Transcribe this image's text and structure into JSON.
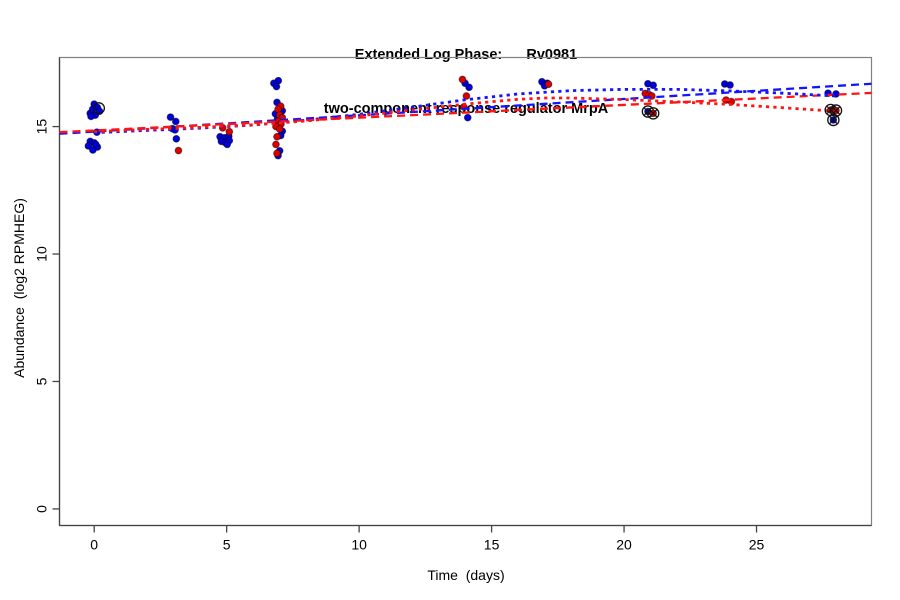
{
  "title": {
    "line1": "Extended Log Phase:      Rv0981",
    "line2": "two-component response regulator MrpA"
  },
  "chart_data": {
    "type": "scatter",
    "xlabel": "Time  (days)",
    "ylabel": "Abundance  (log2 RPMHEG)",
    "xlim": [
      -1.31,
      29.34
    ],
    "ylim": [
      -0.65,
      17.71
    ],
    "xticks": [
      0,
      5,
      10,
      15,
      20,
      25
    ],
    "yticks": [
      0,
      5,
      10,
      15
    ],
    "grid": false,
    "legend": "none",
    "colors": {
      "blue": "#0000D8",
      "red": "#DC0000",
      "dash_blue": "#1414FF",
      "dash_red": "#FF1414",
      "box": "#808080",
      "axis": "#444444",
      "flag": "#111111"
    },
    "series": [
      {
        "name": "blue-sample-points",
        "color": "blue",
        "points": [
          [
            -0.15,
            15.52
          ],
          [
            0.0,
            15.88
          ],
          [
            0.12,
            15.75
          ],
          [
            -0.06,
            15.68
          ],
          [
            0.2,
            15.6
          ],
          [
            0.04,
            15.45
          ],
          [
            -0.12,
            15.4
          ],
          [
            0.1,
            14.78
          ],
          [
            -0.15,
            14.42
          ],
          [
            0.0,
            14.36
          ],
          [
            -0.22,
            14.24
          ],
          [
            0.12,
            14.2
          ],
          [
            -0.05,
            14.08
          ],
          [
            0.06,
            14.3
          ],
          [
            2.88,
            15.37
          ],
          [
            3.08,
            15.2
          ],
          [
            2.95,
            14.92
          ],
          [
            3.05,
            14.87
          ],
          [
            3.1,
            14.52
          ],
          [
            4.75,
            14.6
          ],
          [
            4.92,
            14.56
          ],
          [
            5.08,
            14.62
          ],
          [
            4.8,
            14.42
          ],
          [
            4.95,
            14.37
          ],
          [
            5.1,
            14.45
          ],
          [
            5.02,
            14.3
          ],
          [
            6.95,
            16.8
          ],
          [
            6.78,
            16.7
          ],
          [
            6.88,
            16.57
          ],
          [
            6.9,
            15.95
          ],
          [
            7.1,
            15.62
          ],
          [
            6.84,
            15.5
          ],
          [
            6.92,
            15.3
          ],
          [
            7.1,
            14.82
          ],
          [
            7.04,
            14.65
          ],
          [
            7.0,
            14.05
          ],
          [
            6.94,
            13.86
          ],
          [
            14.0,
            16.7
          ],
          [
            14.15,
            16.54
          ],
          [
            14.1,
            15.35
          ],
          [
            16.9,
            16.76
          ],
          [
            17.1,
            16.7
          ],
          [
            17.0,
            16.6
          ],
          [
            20.9,
            16.68
          ],
          [
            21.1,
            16.62
          ],
          [
            23.8,
            16.67
          ],
          [
            24.0,
            16.63
          ],
          [
            27.7,
            16.31
          ],
          [
            28.0,
            16.28
          ]
        ]
      },
      {
        "name": "red-sample-points",
        "color": "red",
        "points": [
          [
            3.18,
            14.06
          ],
          [
            4.85,
            14.95
          ],
          [
            5.1,
            14.8
          ],
          [
            7.04,
            15.8
          ],
          [
            6.94,
            15.68
          ],
          [
            7.0,
            15.45
          ],
          [
            7.1,
            15.35
          ],
          [
            6.94,
            15.2
          ],
          [
            7.05,
            15.1
          ],
          [
            6.86,
            15.0
          ],
          [
            7.0,
            14.9
          ],
          [
            6.9,
            14.6
          ],
          [
            6.86,
            14.3
          ],
          [
            6.9,
            13.95
          ],
          [
            13.9,
            16.85
          ],
          [
            14.05,
            16.2
          ],
          [
            13.95,
            15.77
          ],
          [
            17.15,
            16.66
          ],
          [
            20.8,
            16.3
          ],
          [
            20.95,
            16.25
          ],
          [
            21.05,
            16.2
          ],
          [
            23.85,
            16.04
          ],
          [
            24.05,
            15.98
          ]
        ]
      }
    ],
    "open_circle_points": [
      {
        "x": 0.18,
        "y": 15.72
      }
    ],
    "flagged_points": [
      {
        "x": 20.9,
        "y": 15.59,
        "color": "blue"
      },
      {
        "x": 21.1,
        "y": 15.52,
        "color": "red"
      },
      {
        "x": 27.8,
        "y": 15.65,
        "color": "red"
      },
      {
        "x": 28.0,
        "y": 15.63,
        "color": "red"
      },
      {
        "x": 27.9,
        "y": 15.26,
        "color": "blue"
      }
    ],
    "trend_lines": [
      {
        "name": "blue-linear-fit",
        "color": "blue",
        "style": "dashed",
        "points": [
          [
            -1.31,
            14.72
          ],
          [
            29.34,
            16.68
          ]
        ]
      },
      {
        "name": "red-linear-fit",
        "color": "red",
        "style": "dashed",
        "points": [
          [
            -1.31,
            14.78
          ],
          [
            29.34,
            16.32
          ]
        ]
      },
      {
        "name": "blue-loess-fit",
        "color": "blue",
        "style": "dotted",
        "points": [
          [
            0,
            14.76
          ],
          [
            2,
            14.85
          ],
          [
            4,
            14.94
          ],
          [
            6,
            15.06
          ],
          [
            8,
            15.25
          ],
          [
            10,
            15.48
          ],
          [
            12,
            15.76
          ],
          [
            14,
            16.05
          ],
          [
            16,
            16.28
          ],
          [
            18,
            16.41
          ],
          [
            20,
            16.46
          ],
          [
            22,
            16.46
          ],
          [
            24,
            16.4
          ],
          [
            26,
            16.31
          ],
          [
            28,
            16.2
          ]
        ]
      },
      {
        "name": "red-loess-fit",
        "color": "red",
        "style": "dotted",
        "points": [
          [
            0,
            14.8
          ],
          [
            2,
            14.89
          ],
          [
            4,
            14.97
          ],
          [
            6,
            15.07
          ],
          [
            8,
            15.22
          ],
          [
            10,
            15.42
          ],
          [
            12,
            15.65
          ],
          [
            14,
            15.88
          ],
          [
            16,
            16.07
          ],
          [
            17,
            16.12
          ],
          [
            18,
            16.12
          ],
          [
            20,
            16.06
          ],
          [
            22,
            15.97
          ],
          [
            24,
            15.87
          ],
          [
            26,
            15.74
          ],
          [
            28,
            15.6
          ]
        ]
      }
    ]
  }
}
